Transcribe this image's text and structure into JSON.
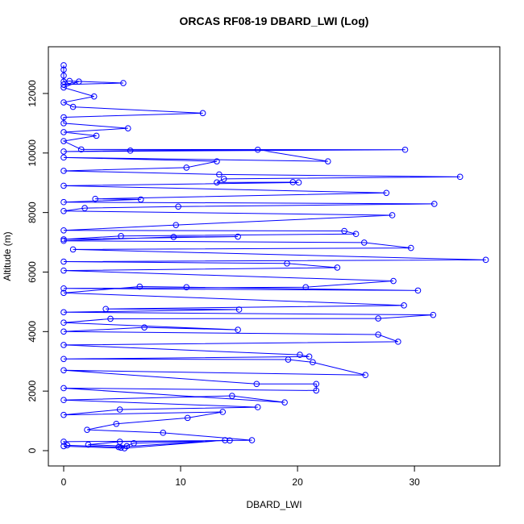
{
  "chart_data": {
    "type": "line",
    "title": "ORCAS RF08-19 DBARD_LWI (Log)",
    "xlabel": "DBARD_LWI",
    "ylabel": "Altitude (m)",
    "color": "#0000ff",
    "markers": true,
    "xlim": [
      -1.31,
      37.3
    ],
    "ylim": [
      -515,
      13570
    ],
    "xticks": [
      0,
      10,
      20,
      30
    ],
    "yticks": [
      0,
      2000,
      4000,
      6000,
      8000,
      10000,
      12000
    ],
    "x": [
      0,
      0,
      0,
      0,
      0.5,
      5.1,
      0,
      1.3,
      0,
      2.6,
      0,
      0.8,
      11.9,
      0,
      0,
      5.5,
      0,
      2.8,
      0,
      1.5,
      29.2,
      0,
      5.7,
      16.6,
      22.6,
      0,
      13.1,
      10.5,
      0,
      13.3,
      33.9,
      13.7,
      13.1,
      19.6,
      20.1,
      0,
      27.6,
      2.7,
      6.6,
      0,
      31.7,
      9.8,
      1.8,
      0,
      28.1,
      9.6,
      0,
      24.0,
      25.0,
      4.9,
      0,
      14.9,
      9.4,
      0,
      25.7,
      29.7,
      0.8,
      36.1,
      0,
      19.1,
      23.4,
      0,
      28.2,
      20.7,
      0,
      30.3,
      10.5,
      6.5,
      0,
      29.1,
      3.6,
      15.0,
      0,
      31.6,
      26.9,
      4.0,
      0,
      14.9,
      6.9,
      0,
      26.9,
      28.6,
      0,
      20.2,
      21.0,
      0,
      19.2,
      21.3,
      25.8,
      0,
      16.5,
      21.6,
      21.6,
      0,
      18.9,
      14.4,
      0,
      16.6,
      4.8,
      0,
      13.6,
      10.6,
      4.5,
      2.0,
      8.5,
      16.1,
      4.8,
      2.1,
      5.4,
      4.9,
      6.0,
      14.2,
      0,
      0.3,
      4.7,
      13.8,
      5.2,
      0
    ],
    "values": [
      12950,
      12800,
      12600,
      12400,
      12420,
      12350,
      12300,
      12400,
      12200,
      11900,
      11700,
      11550,
      11340,
      11200,
      11000,
      10830,
      10700,
      10580,
      10400,
      10120,
      10110,
      10050,
      10080,
      10110,
      9720,
      9850,
      9720,
      9510,
      9400,
      9280,
      9200,
      9130,
      9010,
      9020,
      9010,
      8900,
      8660,
      8460,
      8440,
      8350,
      8290,
      8200,
      8150,
      8050,
      7910,
      7580,
      7400,
      7380,
      7280,
      7210,
      7100,
      7190,
      7180,
      7050,
      6990,
      6810,
      6760,
      6410,
      6350,
      6290,
      6150,
      6050,
      5700,
      5490,
      5450,
      5380,
      5490,
      5510,
      5300,
      4880,
      4760,
      4740,
      4650,
      4560,
      4440,
      4430,
      4300,
      4060,
      4140,
      4000,
      3900,
      3660,
      3550,
      3220,
      3160,
      3080,
      3060,
      2970,
      2540,
      2700,
      2240,
      2240,
      2020,
      2100,
      1620,
      1840,
      1700,
      1460,
      1380,
      1200,
      1300,
      1100,
      900,
      700,
      600,
      350,
      300,
      200,
      150,
      100,
      250,
      340,
      300,
      180,
      120,
      350,
      80,
      150
    ]
  }
}
